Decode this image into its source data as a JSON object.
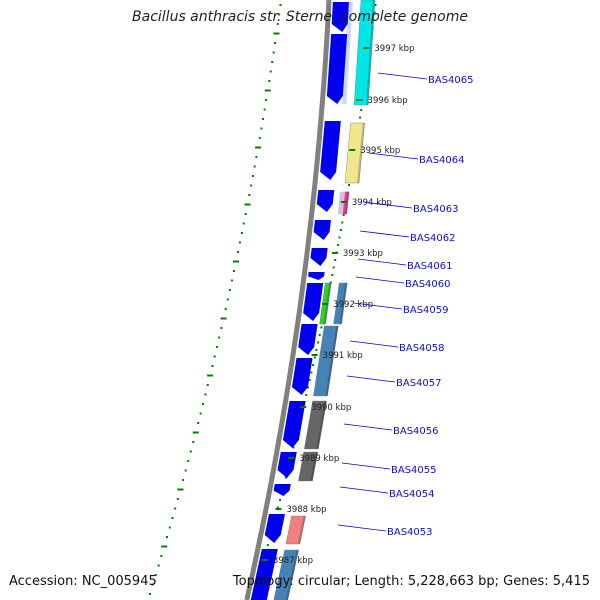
{
  "title": "Bacillus anthracis str. Sterne, complete genome",
  "accession": "Accession: NC_005945",
  "summary": "Topology: circular; Length: 5,228,663 bp; Genes: 5,415",
  "colors": {
    "backbone": "#808080",
    "cds": "#0000ee",
    "label_line": "#0000cc",
    "label_text": "#1010c0",
    "tick_green": "#008000"
  },
  "kbp_ticks": [
    "3997 kbp",
    "3996 kbp",
    "3995 kbp",
    "3994 kbp",
    "3993 kbp",
    "3992 kbp",
    "3991 kbp",
    "3990 kbp",
    "3989 kbp",
    "3988 kbp",
    "3987 kbp"
  ],
  "gene_labels": [
    "BAS4065",
    "BAS4064",
    "BAS4063",
    "BAS4062",
    "BAS4061",
    "BAS4060",
    "BAS4059",
    "BAS4058",
    "BAS4057",
    "BAS4056",
    "BAS4055",
    "BAS4054",
    "BAS4053"
  ],
  "cog_colors": [
    "#00e6e6",
    "#f0e68c",
    "#ff3399",
    "#33cc33",
    "#4682b4",
    "#666666",
    "#f08080"
  ]
}
